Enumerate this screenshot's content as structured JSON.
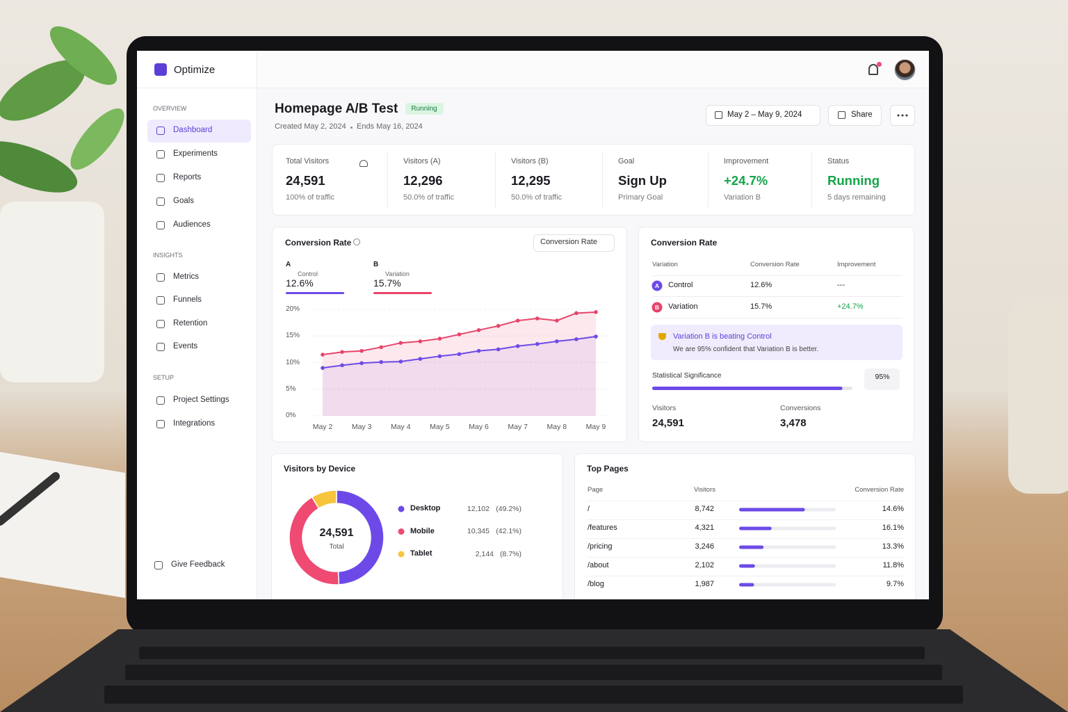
{
  "app": {
    "name": "Optimize"
  },
  "nav": {
    "sections": [
      {
        "title": "OVERVIEW",
        "items": [
          "Dashboard",
          "Experiments",
          "Reports",
          "Goals",
          "Audiences"
        ]
      },
      {
        "title": "INSIGHTS",
        "items": [
          "Metrics",
          "Funnels",
          "Retention",
          "Events"
        ]
      },
      {
        "title": "SETUP",
        "items": [
          "Project Settings",
          "Integrations"
        ]
      }
    ],
    "feedback": "Give Feedback"
  },
  "header": {
    "title": "Homepage A/B Test",
    "status": "Running",
    "created": "Created May 2, 2024",
    "ends": "Ends May 16, 2024",
    "date_range": "May 2 – May 9, 2024",
    "share": "Share"
  },
  "stats": [
    {
      "label": "Total Visitors",
      "value": "24,591",
      "sub": "100% of traffic"
    },
    {
      "label": "Visitors (A)",
      "value": "12,296",
      "sub": "50.0% of traffic"
    },
    {
      "label": "Visitors (B)",
      "value": "12,295",
      "sub": "50.0% of traffic"
    },
    {
      "label": "Goal",
      "value": "Sign Up",
      "sub": "Primary Goal"
    },
    {
      "label": "Improvement",
      "value": "+24.7%",
      "sub": "Variation B"
    },
    {
      "label": "Status",
      "value": "Running",
      "sub": "5 days remaining"
    }
  ],
  "chart_data": {
    "type": "line",
    "title": "Conversion Rate",
    "dropdown": "Conversion Rate",
    "categories": [
      "May 2",
      null,
      "May 3",
      null,
      "May 4",
      null,
      "May 5",
      null,
      "May 6",
      null,
      "May 7",
      null,
      "May 8",
      null,
      "May 9"
    ],
    "series": [
      {
        "name": "Control",
        "letter": "A",
        "summary": "12.6%",
        "color": "#6d4ae8",
        "values": [
          9.0,
          9.5,
          9.9,
          10.1,
          10.2,
          10.7,
          11.2,
          11.6,
          12.2,
          12.5,
          13.1,
          13.5,
          14.0,
          14.4,
          14.9
        ]
      },
      {
        "name": "Variation",
        "letter": "B",
        "summary": "15.7%",
        "color": "#e8436a",
        "values": [
          11.5,
          12.0,
          12.2,
          12.9,
          13.7,
          14.0,
          14.5,
          15.3,
          16.1,
          16.9,
          17.9,
          18.3,
          17.9,
          19.3,
          19.5
        ]
      }
    ],
    "ylim": [
      0,
      20
    ],
    "yticks": [
      {
        "value": 0,
        "label": "0%"
      },
      {
        "value": 5,
        "label": "5%"
      },
      {
        "value": 10,
        "label": "10%"
      },
      {
        "value": 15,
        "label": "15%"
      },
      {
        "value": 20,
        "label": "20%"
      }
    ],
    "grid": true
  },
  "results": {
    "title": "Conversion Rate",
    "columns": [
      "Variation",
      "Conversion Rate",
      "Improvement"
    ],
    "rows": [
      [
        "A",
        "Control",
        "12.6%",
        "---"
      ],
      [
        "B",
        "Variation",
        "15.7%",
        "+24.7%"
      ]
    ],
    "callout_title": "Variation B is beating Control",
    "callout_text": "We are 95% confident that Variation B is better.",
    "significance_label": "Statistical Significance",
    "significance": {
      "value": 95,
      "label": "95%"
    },
    "visitors_label": "Visitors",
    "visitors": "24,591",
    "conversions_label": "Conversions",
    "conversions": "3,478"
  },
  "device": {
    "title": "Visitors by Device",
    "total": "24,591",
    "total_label": "Total",
    "items": [
      {
        "name": "Desktop",
        "visitors": "12,102",
        "share": 49.2,
        "share_label": "(49.2%)",
        "color": "#6d4ae8"
      },
      {
        "name": "Mobile",
        "visitors": "10,345",
        "share": 42.1,
        "share_label": "(42.1%)",
        "color": "#ef4a72"
      },
      {
        "name": "Tablet",
        "visitors": "2,144",
        "share": 8.7,
        "share_label": "(8.7%)",
        "color": "#f7c43c"
      }
    ]
  },
  "pages": {
    "title": "Top Pages",
    "columns": [
      "Page",
      "Visitors",
      "Conversion Rate"
    ],
    "rows": [
      {
        "page": "/",
        "visitors": 8742,
        "visitors_label": "8,742",
        "rate": "14.6%"
      },
      {
        "page": "/features",
        "visitors": 4321,
        "visitors_label": "4,321",
        "rate": "16.1%"
      },
      {
        "page": "/pricing",
        "visitors": 3246,
        "visitors_label": "3,246",
        "rate": "13.3%"
      },
      {
        "page": "/about",
        "visitors": 2102,
        "visitors_label": "2,102",
        "rate": "11.8%"
      },
      {
        "page": "/blog",
        "visitors": 1987,
        "visitors_label": "1,987",
        "rate": "9.7%"
      }
    ]
  }
}
